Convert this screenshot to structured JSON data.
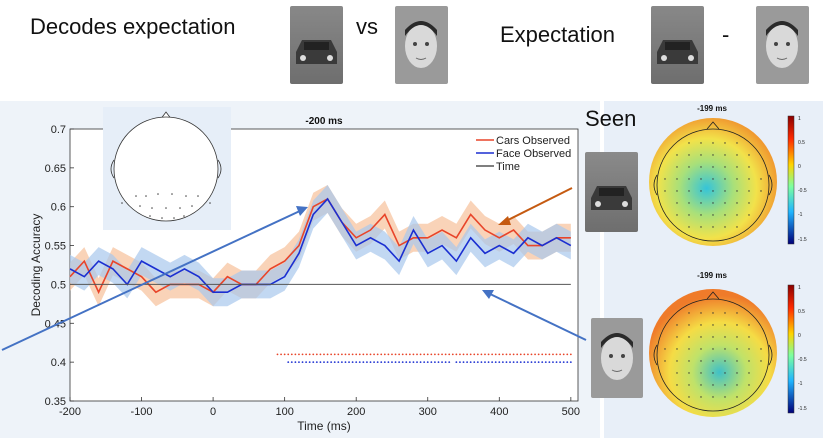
{
  "header": {
    "left_label": "Decodes expectation",
    "vs_label": "vs",
    "right_label": "Expectation",
    "minus_label": "-"
  },
  "topomap_panel": {
    "title": "Seen",
    "maps": [
      {
        "time_label": "-199 ms",
        "colorbar_ticks": [
          "1",
          "0.5",
          "0",
          "-0.5",
          "-1",
          "-1.5"
        ]
      },
      {
        "time_label": "-199 ms",
        "colorbar_ticks": [
          "1",
          "0.5",
          "0",
          "-0.5",
          "-1",
          "-1.5"
        ]
      }
    ]
  },
  "colors": {
    "cars": "#e8452a",
    "face": "#1b2fd1",
    "time": "#555555",
    "cars_band": "#f6c09a",
    "face_band": "#a8c8ec",
    "arrow_blue": "#4472c4",
    "arrow_orange": "#c55a11"
  },
  "chart_data": {
    "type": "line",
    "title": "-200 ms",
    "xlabel": "Time (ms)",
    "ylabel": "Decoding Accuracy",
    "xlim": [
      -200,
      510
    ],
    "ylim": [
      0.35,
      0.7
    ],
    "xticks": [
      -200,
      -100,
      0,
      100,
      200,
      300,
      400,
      500
    ],
    "yticks": [
      0.35,
      0.4,
      0.45,
      0.5,
      0.55,
      0.6,
      0.65,
      0.7
    ],
    "legend": {
      "placement": "top-right",
      "entries": [
        "Cars Observed",
        "Face Observed",
        "Time"
      ]
    },
    "x": [
      -200,
      -180,
      -160,
      -140,
      -120,
      -100,
      -80,
      -60,
      -40,
      -20,
      0,
      20,
      40,
      60,
      80,
      100,
      120,
      140,
      160,
      180,
      200,
      220,
      240,
      260,
      280,
      300,
      320,
      340,
      360,
      380,
      400,
      420,
      440,
      460,
      480,
      500
    ],
    "series": [
      {
        "name": "Cars Observed",
        "values": [
          0.51,
          0.53,
          0.49,
          0.53,
          0.52,
          0.51,
          0.49,
          0.5,
          0.5,
          0.5,
          0.49,
          0.51,
          0.5,
          0.5,
          0.52,
          0.53,
          0.55,
          0.6,
          0.61,
          0.58,
          0.56,
          0.57,
          0.59,
          0.55,
          0.56,
          0.56,
          0.57,
          0.56,
          0.59,
          0.57,
          0.56,
          0.57,
          0.55,
          0.55,
          0.56,
          0.56
        ]
      },
      {
        "name": "Face Observed",
        "values": [
          0.52,
          0.51,
          0.53,
          0.52,
          0.5,
          0.53,
          0.52,
          0.51,
          0.52,
          0.51,
          0.49,
          0.49,
          0.5,
          0.5,
          0.5,
          0.51,
          0.54,
          0.59,
          0.61,
          0.58,
          0.55,
          0.56,
          0.55,
          0.53,
          0.57,
          0.54,
          0.55,
          0.53,
          0.56,
          0.54,
          0.55,
          0.54,
          0.56,
          0.55,
          0.56,
          0.55
        ]
      },
      {
        "name": "Time",
        "values": [
          0.5,
          0.5,
          0.5,
          0.5,
          0.5,
          0.5,
          0.5,
          0.5,
          0.5,
          0.5,
          0.5,
          0.5,
          0.5,
          0.5,
          0.5,
          0.5,
          0.5,
          0.5,
          0.5,
          0.5,
          0.5,
          0.5,
          0.5,
          0.5,
          0.5,
          0.5,
          0.5,
          0.5,
          0.5,
          0.5,
          0.5,
          0.5,
          0.5,
          0.5,
          0.5,
          0.5
        ]
      }
    ],
    "significance": [
      {
        "series": "Cars Observed",
        "y": 0.41,
        "ranges": [
          [
            90,
            500
          ]
        ]
      },
      {
        "series": "Face Observed",
        "y": 0.4,
        "ranges": [
          [
            105,
            330
          ],
          [
            340,
            500
          ]
        ]
      }
    ]
  }
}
